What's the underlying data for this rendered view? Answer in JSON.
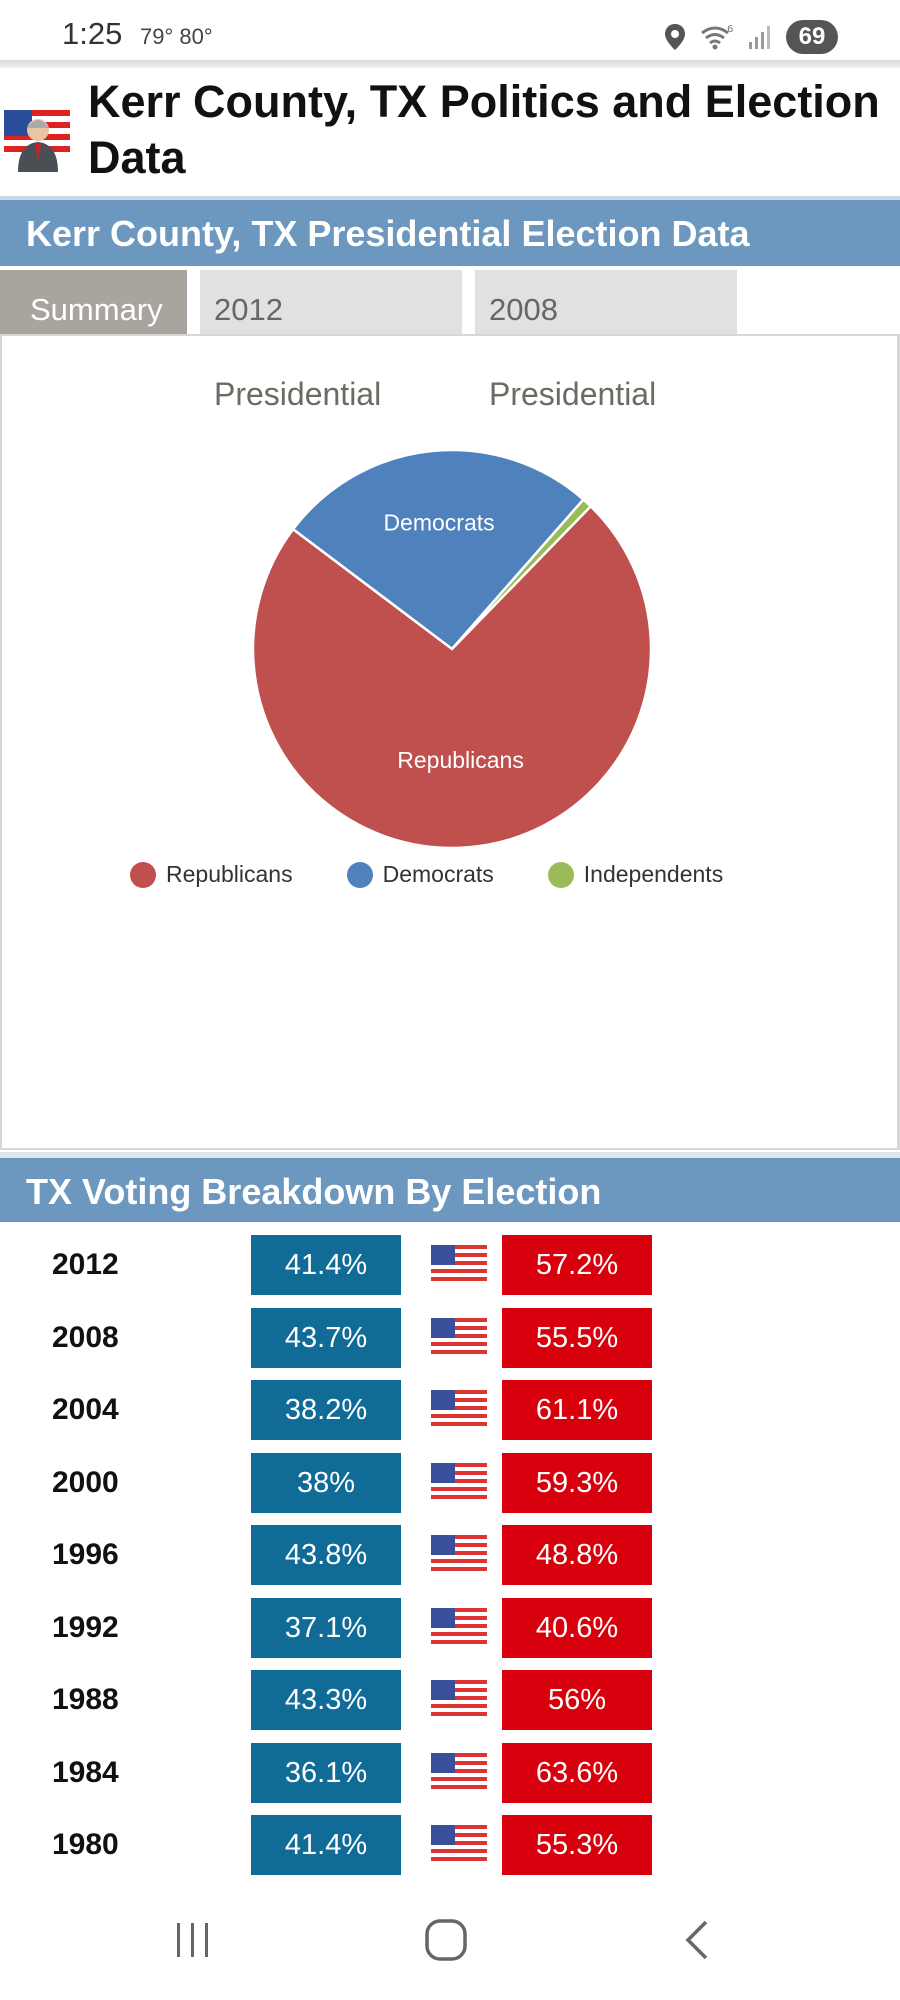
{
  "status_bar": {
    "time": "1:25",
    "temps": "79° 80°",
    "battery": "69"
  },
  "header": {
    "title": "Kerr County, TX Politics and Election Data",
    "logo_icon": "politician-flag-icon"
  },
  "section1": {
    "title": "Kerr County, TX Presidential Election Data"
  },
  "tabs": [
    {
      "label": "Summary",
      "active": true
    },
    {
      "label": "2012",
      "active": false
    },
    {
      "label": "2008",
      "active": false
    }
  ],
  "chart_data": {
    "type": "pie",
    "titles": [
      "Presidential",
      "Presidential"
    ],
    "slices": [
      {
        "label": "Republicans",
        "value": 73.0,
        "color": "#c0504d"
      },
      {
        "label": "Democrats",
        "value": 26.2,
        "color": "#4f81bd"
      },
      {
        "label": "Independents",
        "value": 0.8,
        "color": "#9bbb59"
      }
    ],
    "legend": [
      "Republicans",
      "Democrats",
      "Independents"
    ],
    "legend_position": "bottom"
  },
  "section2": {
    "title": "TX Voting Breakdown By Election"
  },
  "breakdown": [
    {
      "year": "2012",
      "dem": "41.4%",
      "rep": "57.2%"
    },
    {
      "year": "2008",
      "dem": "43.7%",
      "rep": "55.5%"
    },
    {
      "year": "2004",
      "dem": "38.2%",
      "rep": "61.1%"
    },
    {
      "year": "2000",
      "dem": "38%",
      "rep": "59.3%"
    },
    {
      "year": "1996",
      "dem": "43.8%",
      "rep": "48.8%"
    },
    {
      "year": "1992",
      "dem": "37.1%",
      "rep": "40.6%"
    },
    {
      "year": "1988",
      "dem": "43.3%",
      "rep": "56%"
    },
    {
      "year": "1984",
      "dem": "36.1%",
      "rep": "63.6%"
    },
    {
      "year": "1980",
      "dem": "41.4%",
      "rep": "55.3%"
    }
  ],
  "colors": {
    "dem": "#106b97",
    "rep": "#d8000c",
    "section_bar": "#6c98bf"
  }
}
